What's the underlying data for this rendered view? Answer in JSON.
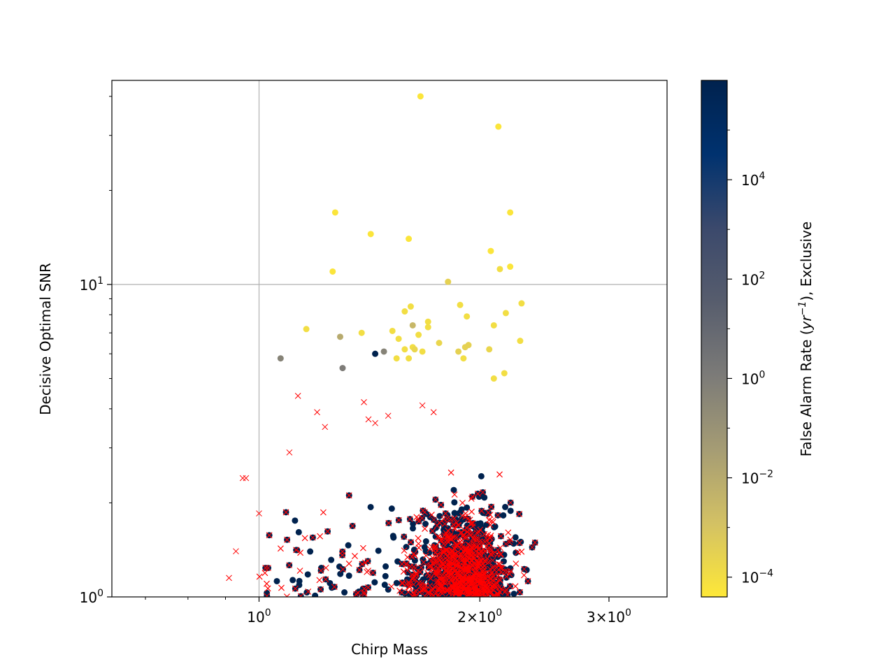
{
  "chart_data": {
    "type": "scatter",
    "xlabel": "Chirp Mass",
    "ylabel": "Decisive Optimal SNR",
    "xscale": "log",
    "yscale": "log",
    "xlim": [
      0.63,
      3.6
    ],
    "ylim": [
      1,
      45
    ],
    "grid": true,
    "x_ticks": [
      {
        "value": 1,
        "base": "10",
        "exp": "0"
      },
      {
        "value": 2,
        "base": "2×10",
        "exp": "0"
      },
      {
        "value": 3,
        "base": "3×10",
        "exp": "0"
      }
    ],
    "y_ticks": [
      {
        "value": 1,
        "base": "10",
        "exp": "0"
      },
      {
        "value": 10,
        "base": "10",
        "exp": "1"
      }
    ],
    "colorbar": {
      "label_prefix": "False Alarm Rate (",
      "label_math": "yr",
      "label_exp": "−1",
      "label_suffix": "), Exclusive",
      "scale": "log",
      "range": [
        4e-05,
        1000000
      ],
      "colormap": "cividis_r",
      "colors": [
        "#fee838",
        "#d3c164",
        "#a59c74",
        "#7c7b78",
        "#575d6d",
        "#3b496c",
        "#00326f",
        "#00224e"
      ],
      "ticks": [
        {
          "value": 0.0001,
          "base": "10",
          "exp": "−4"
        },
        {
          "value": 0.01,
          "base": "10",
          "exp": "−2"
        },
        {
          "value": 1,
          "base": "10",
          "exp": "0"
        },
        {
          "value": 100,
          "base": "10",
          "exp": "2"
        },
        {
          "value": 10000,
          "base": "10",
          "exp": "4"
        }
      ]
    },
    "series": [
      {
        "marker": "circle",
        "color_by": "far",
        "points": [
          [
            1.66,
            40.0,
            5e-05
          ],
          [
            2.12,
            32.0,
            5e-05
          ],
          [
            1.27,
            17.0,
            5e-05
          ],
          [
            2.2,
            17.0,
            5e-05
          ],
          [
            1.42,
            14.5,
            5e-05
          ],
          [
            1.6,
            14.0,
            5e-05
          ],
          [
            2.07,
            12.8,
            5e-05
          ],
          [
            1.26,
            11.0,
            5e-05
          ],
          [
            2.13,
            11.2,
            0.0001
          ],
          [
            2.2,
            11.4,
            5e-05
          ],
          [
            1.81,
            10.2,
            0.0003
          ],
          [
            1.88,
            8.6,
            0.0001
          ],
          [
            1.61,
            8.5,
            0.0001
          ],
          [
            1.58,
            8.2,
            0.0001
          ],
          [
            2.28,
            8.7,
            0.0001
          ],
          [
            2.17,
            8.1,
            0.0001
          ],
          [
            1.92,
            7.9,
            0.0001
          ],
          [
            1.7,
            7.6,
            0.0001
          ],
          [
            1.16,
            7.2,
            0.0001
          ],
          [
            1.52,
            7.1,
            0.0001
          ],
          [
            1.62,
            7.4,
            0.003
          ],
          [
            1.7,
            7.3,
            0.0001
          ],
          [
            2.09,
            7.4,
            0.0001
          ],
          [
            2.27,
            6.6,
            0.0001
          ],
          [
            1.55,
            6.7,
            0.0001
          ],
          [
            1.65,
            6.9,
            0.0001
          ],
          [
            1.29,
            6.8,
            0.01
          ],
          [
            1.38,
            7.0,
            0.0001
          ],
          [
            1.76,
            6.5,
            0.0002
          ],
          [
            1.62,
            6.3,
            0.0001
          ],
          [
            1.63,
            6.2,
            0.0002
          ],
          [
            1.58,
            6.2,
            0.0001
          ],
          [
            1.93,
            6.4,
            0.0003
          ],
          [
            2.06,
            6.2,
            0.0002
          ],
          [
            1.87,
            6.1,
            0.0003
          ],
          [
            1.91,
            6.3,
            0.0003
          ],
          [
            2.16,
            5.2,
            0.0001
          ],
          [
            2.09,
            5.0,
            0.0001
          ],
          [
            1.67,
            6.1,
            0.0001
          ],
          [
            1.07,
            5.8,
            0.5
          ],
          [
            1.3,
            5.4,
            1.0
          ],
          [
            1.48,
            6.1,
            0.5
          ],
          [
            1.6,
            5.8,
            0.0001
          ],
          [
            1.54,
            5.8,
            0.0001
          ],
          [
            1.9,
            5.8,
            0.0001
          ],
          [
            1.44,
            6.0,
            1000000
          ]
        ]
      },
      {
        "marker": "x",
        "color": "#ff0000",
        "points": [
          [
            1.13,
            4.4
          ],
          [
            1.2,
            3.9
          ],
          [
            1.23,
            3.5
          ],
          [
            1.1,
            2.9
          ],
          [
            0.96,
            2.4
          ],
          [
            0.95,
            2.4
          ],
          [
            1.44,
            3.6
          ],
          [
            1.41,
            3.7
          ],
          [
            1.39,
            4.2
          ],
          [
            1.5,
            3.8
          ],
          [
            1.67,
            4.1
          ],
          [
            1.73,
            3.9
          ],
          [
            1.0,
            1.85
          ],
          [
            0.93,
            1.4
          ],
          [
            0.91,
            1.15
          ]
        ]
      }
    ]
  }
}
